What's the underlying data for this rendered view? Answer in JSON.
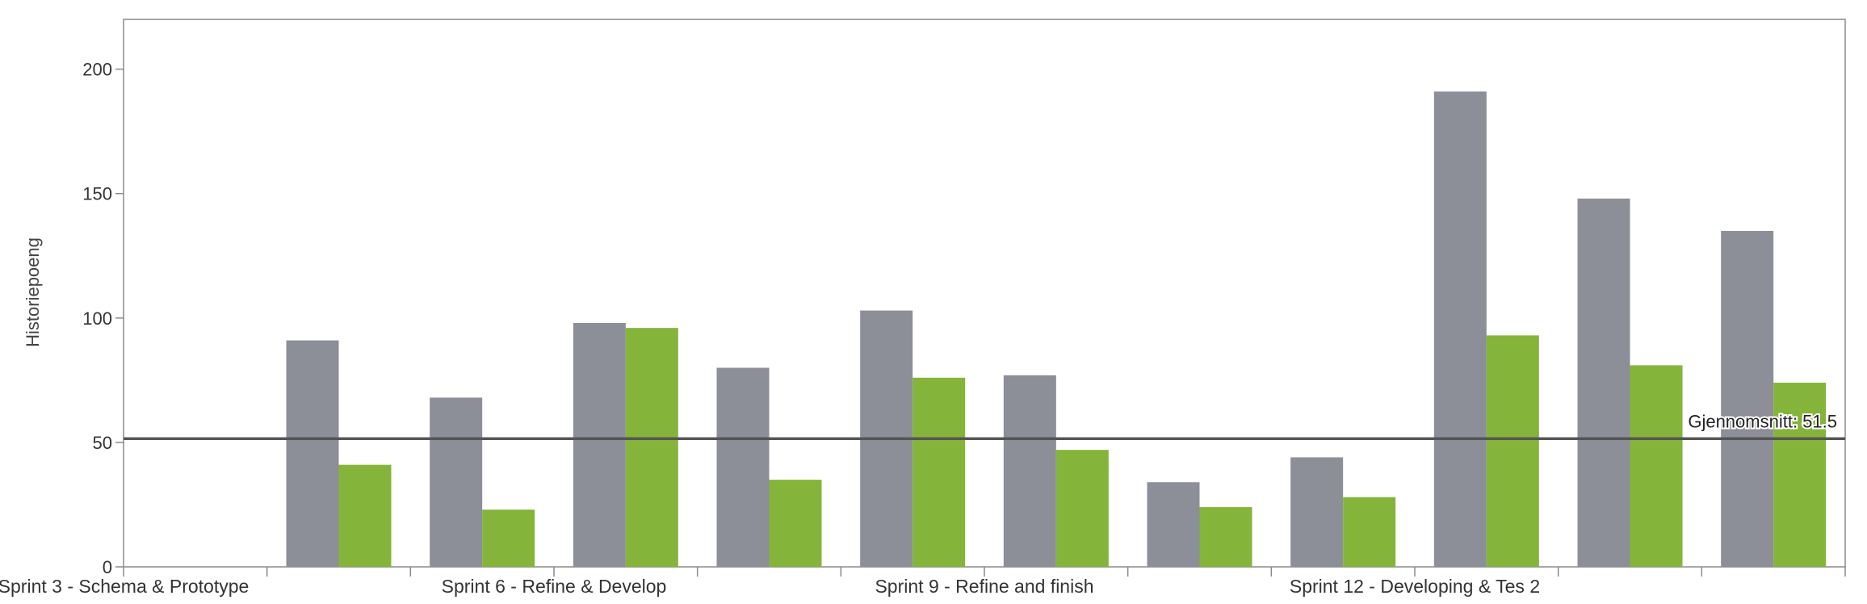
{
  "chart_data": {
    "type": "bar",
    "ylabel": "Historiepoeng",
    "ylim": [
      0,
      220
    ],
    "yticks": [
      0,
      50,
      100,
      150,
      200
    ],
    "grid": false,
    "categories": [
      "Sprint 3 - Schema & Prototype",
      "",
      "",
      "Sprint 6 - Refine & Develop",
      "",
      "",
      "Sprint 9 - Refine and finish",
      "",
      "",
      "Sprint 12 - Developing & Tes 2",
      "",
      ""
    ],
    "series": [
      {
        "color": "#8c8e98",
        "values": [
          0,
          91,
          68,
          98,
          80,
          103,
          77,
          34,
          44,
          191,
          148,
          135
        ]
      },
      {
        "color": "#84b53a",
        "values": [
          0,
          41,
          23,
          96,
          35,
          76,
          47,
          24,
          28,
          93,
          81,
          74
        ]
      }
    ],
    "average": {
      "value": 51.5,
      "label": "Gjennomsnitt: 51.5",
      "color": "#555555"
    }
  }
}
